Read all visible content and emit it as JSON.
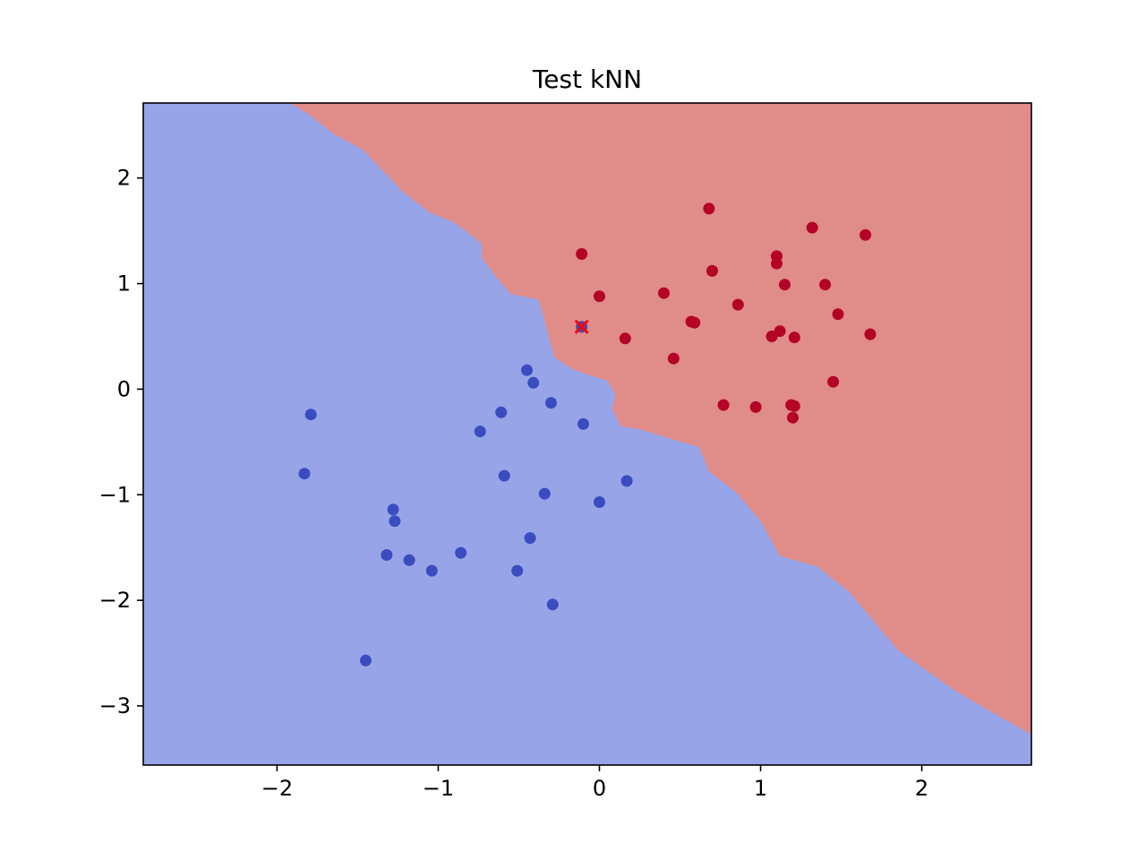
{
  "chart_data": {
    "type": "scatter",
    "title": "Test kNN",
    "xlabel": "",
    "ylabel": "",
    "xlim": [
      -2.83,
      2.68
    ],
    "ylim": [
      -3.56,
      2.71
    ],
    "x_ticks": [
      -2,
      -1,
      0,
      1,
      2
    ],
    "x_tick_labels": [
      "−2",
      "−1",
      "0",
      "1",
      "2"
    ],
    "y_ticks": [
      2,
      1,
      0,
      -1,
      -2,
      -3
    ],
    "y_tick_labels": [
      "2",
      "1",
      "0",
      "−1",
      "−2",
      "−3"
    ],
    "grid": false,
    "colors": {
      "class_0_point": "#3b4cc0",
      "class_1_point": "#b40426",
      "class_0_region": "#97a5e8",
      "class_1_region": "#e08c89",
      "test_marker": "#ff0000"
    },
    "decision_boundary": {
      "x": [
        -1.92,
        -1.8,
        -1.65,
        -1.47,
        -1.22,
        -1.05,
        -0.9,
        -0.73,
        -0.73,
        -0.65,
        -0.55,
        -0.38,
        -0.35,
        -0.33,
        -0.28,
        -0.18,
        -0.1,
        0.05,
        0.1,
        0.08,
        0.13,
        0.25,
        0.42,
        0.62,
        0.68,
        0.85,
        1.0,
        1.12,
        1.35,
        1.55,
        1.85,
        2.2,
        2.48,
        2.68
      ],
      "y": [
        2.71,
        2.6,
        2.42,
        2.27,
        1.87,
        1.67,
        1.58,
        1.38,
        1.25,
        1.08,
        0.9,
        0.85,
        0.72,
        0.58,
        0.3,
        0.2,
        0.15,
        0.08,
        -0.05,
        -0.18,
        -0.35,
        -0.38,
        -0.46,
        -0.55,
        -0.78,
        -0.98,
        -1.25,
        -1.58,
        -1.68,
        -1.92,
        -2.47,
        -2.85,
        -3.1,
        -3.27
      ]
    },
    "series": [
      {
        "class": 0,
        "x": [
          -1.79,
          -1.83,
          -0.74,
          -0.61,
          -0.59,
          -0.45,
          -0.41,
          -0.3,
          -0.1,
          -0.34,
          0.0,
          0.17,
          -1.28,
          -1.27,
          -1.32,
          -1.18,
          -1.04,
          -0.86,
          -0.43,
          -0.51,
          -0.29,
          -1.45
        ],
        "y": [
          -0.24,
          -0.8,
          -0.4,
          -0.22,
          -0.82,
          0.18,
          0.06,
          -0.13,
          -0.33,
          -0.99,
          -1.07,
          -0.87,
          -1.14,
          -1.25,
          -1.57,
          -1.62,
          -1.72,
          -1.55,
          -1.41,
          -1.72,
          -2.04,
          -2.57
        ]
      },
      {
        "class": 1,
        "x": [
          0.68,
          1.32,
          1.65,
          -0.11,
          1.1,
          1.1,
          0.7,
          0.0,
          0.4,
          1.15,
          1.4,
          0.86,
          1.48,
          0.57,
          0.59,
          0.16,
          1.07,
          1.12,
          1.21,
          1.68,
          0.46,
          1.45,
          0.77,
          0.97,
          1.19,
          1.21,
          1.2
        ],
        "y": [
          1.71,
          1.53,
          1.46,
          1.28,
          1.26,
          1.19,
          1.12,
          0.88,
          0.91,
          0.99,
          0.99,
          0.8,
          0.71,
          0.64,
          0.63,
          0.48,
          0.5,
          0.55,
          0.49,
          0.52,
          0.29,
          0.07,
          -0.15,
          -0.17,
          -0.15,
          -0.16,
          -0.27
        ]
      }
    ],
    "test_point": {
      "x": -0.11,
      "y": 0.59,
      "class": 0
    }
  }
}
